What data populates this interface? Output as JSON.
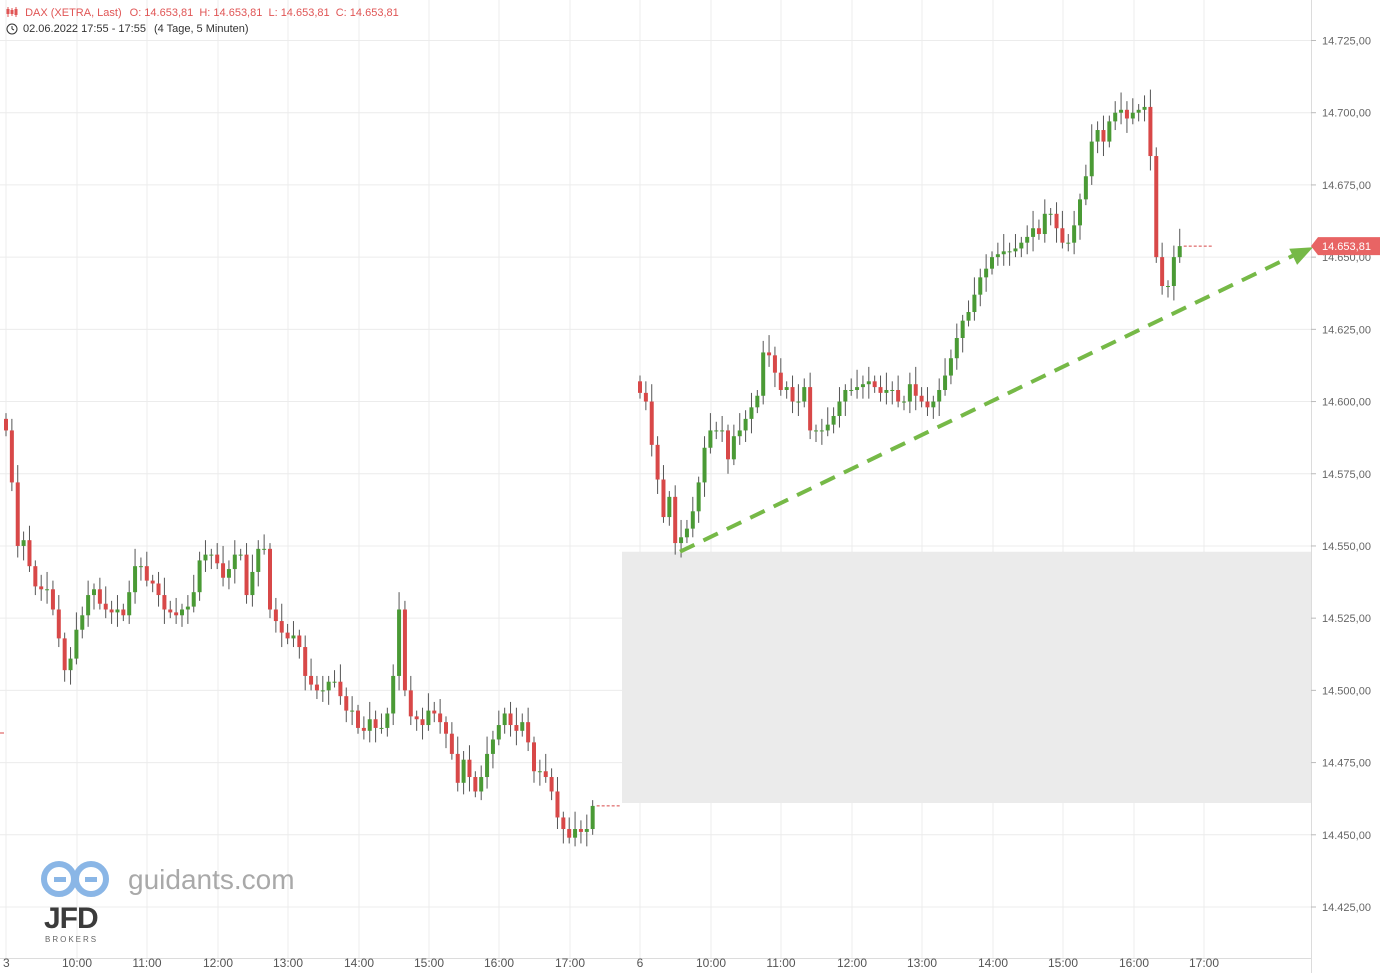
{
  "header": {
    "instrument": "DAX (XETRA, Last)",
    "ohlc": "O: 14.653,81  H: 14.653,81  L: 14.653,81  C: 14.653,81",
    "period": "02.06.2022 17:55 - 17:55",
    "span": "(4 Tage, 5 Minuten)"
  },
  "watermark": {
    "site": "guidants.com",
    "logo": "JFD",
    "logo_sub": "BROKERS"
  },
  "last_price_label": "14.653,81",
  "colors": {
    "up": "#4a9a35",
    "down": "#d84848",
    "trend": "#76b947",
    "price_tag": "#e86464",
    "zone": "#ebebeb"
  },
  "chart_data": {
    "type": "candlestick",
    "y_range": [
      14410,
      14755
    ],
    "y_ticks": [
      "14.425,00",
      "14.450,00",
      "14.475,00",
      "14.500,00",
      "14.525,00",
      "14.550,00",
      "14.575,00",
      "14.600,00",
      "14.625,00",
      "14.650,00",
      "14.675,00",
      "14.700,00",
      "14.725,00"
    ],
    "y_tick_values": [
      14425,
      14450,
      14475,
      14500,
      14525,
      14550,
      14575,
      14600,
      14625,
      14650,
      14675,
      14700,
      14725
    ],
    "x_labels": [
      "3",
      "10:00",
      "11:00",
      "12:00",
      "13:00",
      "14:00",
      "15:00",
      "16:00",
      "17:00",
      "6",
      "10:00",
      "11:00",
      "12:00",
      "13:00",
      "14:00",
      "15:00",
      "16:00",
      "17:00"
    ],
    "sessions": [
      {
        "name": "day 3",
        "start": "09:00",
        "end": "17:30",
        "closes": [
          14590,
          14572,
          14550,
          14552,
          14543,
          14536,
          14535,
          14535,
          14528,
          14518,
          14507,
          14511,
          14521,
          14526,
          14533,
          14535,
          14530,
          14528,
          14527,
          14528,
          14526,
          14534,
          14543,
          14543,
          14538,
          14537,
          14533,
          14528,
          14527,
          14526,
          14528,
          14529,
          14534,
          14545,
          14547,
          14547,
          14544,
          14539,
          14542,
          14547,
          14547,
          14533,
          14541,
          14549,
          14549,
          14528,
          14524,
          14520,
          14518,
          14519,
          14515,
          14505,
          14502,
          14500,
          14500,
          14503,
          14503,
          14498,
          14493,
          14493,
          14487,
          14486,
          14490,
          14487,
          14487,
          14492,
          14505,
          14528,
          14500,
          14491,
          14490,
          14488,
          14493,
          14492,
          14489,
          14485,
          14478,
          14468,
          14476,
          14470,
          14465,
          14470,
          14478,
          14483,
          14488,
          14492,
          14488,
          14486,
          14489,
          14482,
          14472,
          14472,
          14470,
          14465,
          14456,
          14452,
          14449,
          14452,
          14451,
          14452,
          14460
        ],
        "last": 14460
      },
      {
        "name": "day 6",
        "start": "09:00",
        "end": "17:30",
        "closes": [
          14603,
          14600,
          14585,
          14573,
          14560,
          14567,
          14551,
          14553,
          14556,
          14562,
          14572,
          14584,
          14590,
          14590,
          14590,
          14580,
          14588,
          14590,
          14594,
          14598,
          14602,
          14617,
          14616,
          14610,
          14604,
          14605,
          14600,
          14600,
          14605,
          14590,
          14590,
          14590,
          14592,
          14595,
          14600,
          14604,
          14604,
          14605,
          14606,
          14607,
          14605,
          14603,
          14604,
          14604,
          14600,
          14600,
          14606,
          14602,
          14600,
          14598,
          14600,
          14604,
          14609,
          14615,
          14622,
          14628,
          14631,
          14637,
          14643,
          14646,
          14650,
          14651,
          14652,
          14652,
          14653,
          14655,
          14657,
          14660,
          14658,
          14665,
          14665,
          14660,
          14655,
          14655,
          14661,
          14670,
          14678,
          14690,
          14694,
          14690,
          14697,
          14700,
          14701,
          14698,
          14700,
          14701,
          14702,
          14685,
          14650,
          14640,
          14640,
          14650,
          14653.81
        ],
        "last": 14653.81
      }
    ],
    "demand_zone": {
      "from": 14461,
      "to": 14548
    },
    "trend_line": {
      "from": {
        "time": "day 6 09:35",
        "price": 14548
      },
      "to": {
        "time": "day 6 17:45",
        "price": 14651
      }
    }
  }
}
